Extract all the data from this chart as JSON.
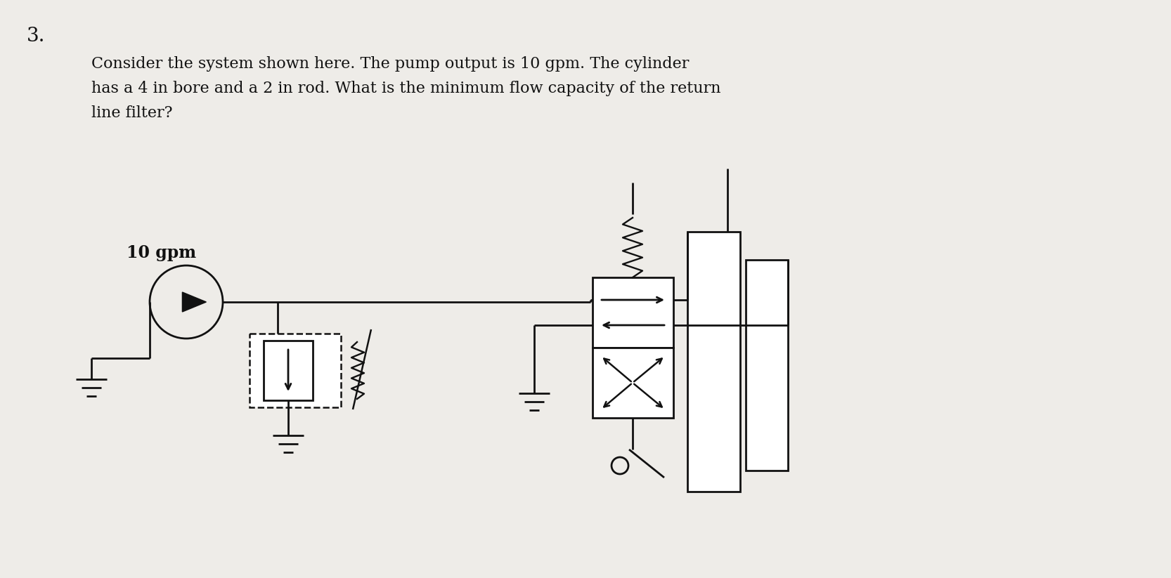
{
  "background_color": "#eeece8",
  "text_color": "#111111",
  "line_color": "#111111",
  "title_number": "3.",
  "problem_text_line1": "Consider the system shown here. The pump output is 10 gpm. The cylinder",
  "problem_text_line2": "has a 4 in bore and a 2 in rod. What is the minimum flow capacity of the return",
  "problem_text_line3": "line filter?",
  "label_10gpm": "10 gpm",
  "font_size_title": 20,
  "font_size_body": 16,
  "font_size_label": 15
}
